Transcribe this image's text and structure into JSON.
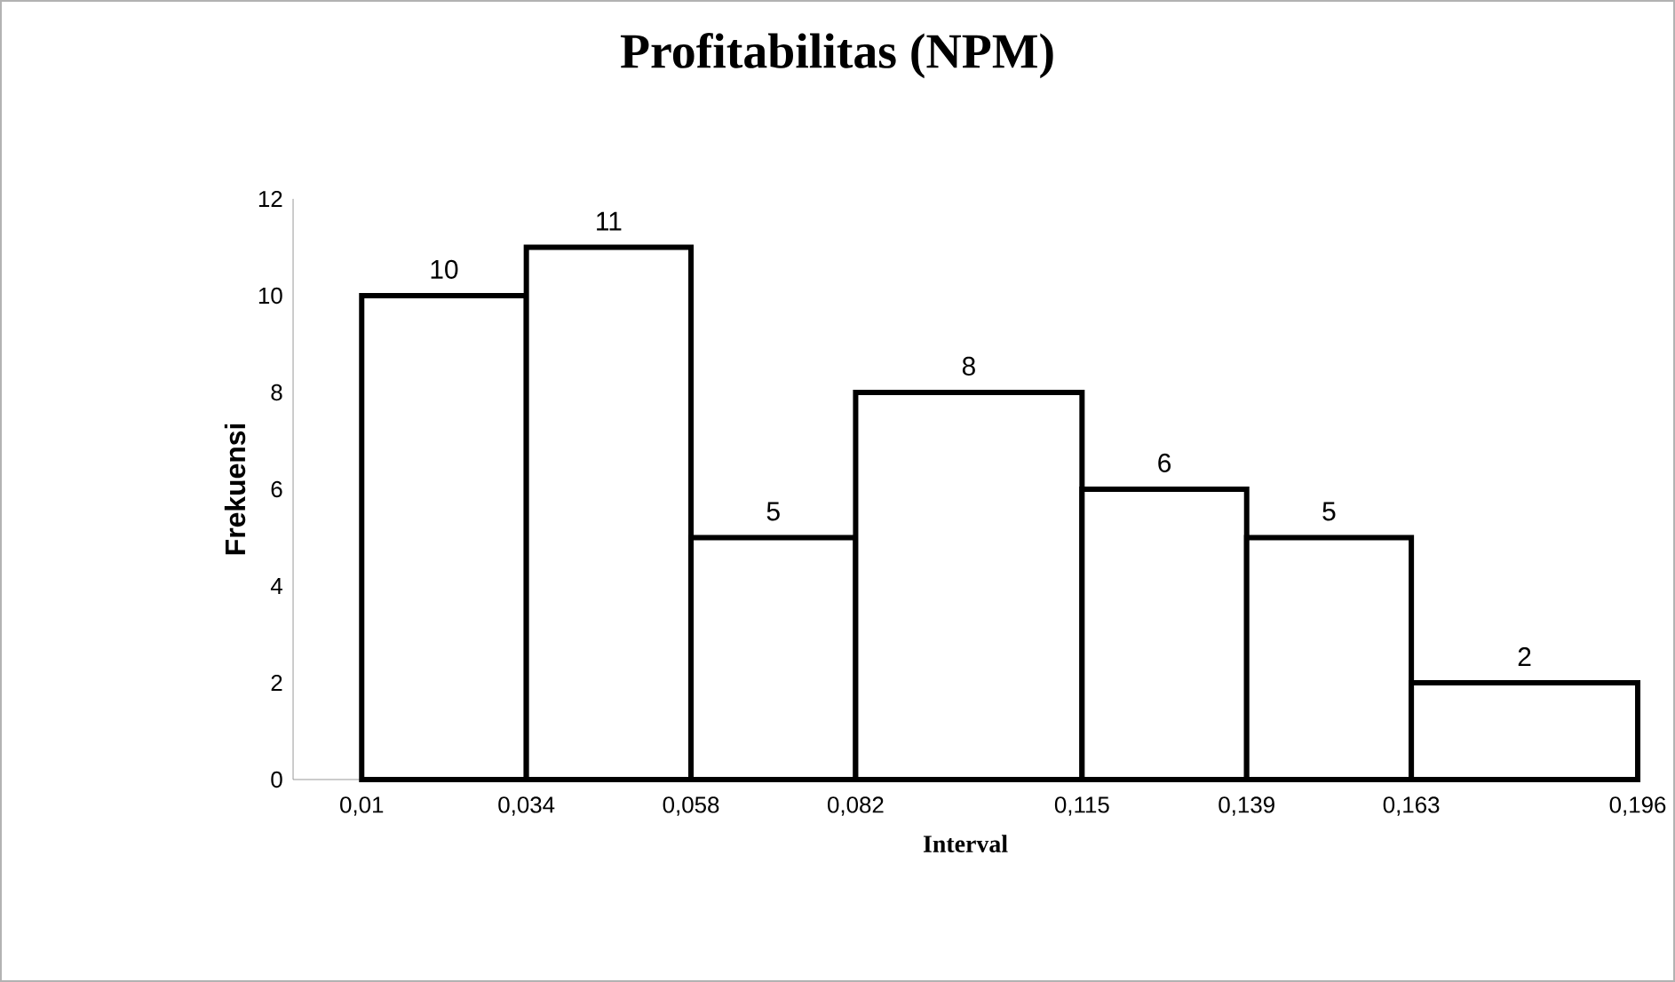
{
  "chart_data": {
    "type": "histogram",
    "title": "Profitabilitas (NPM)",
    "xlabel": "Interval",
    "ylabel": "Frekuensi",
    "bins": [
      0.01,
      0.034,
      0.058,
      0.082,
      0.115,
      0.139,
      0.163,
      0.196
    ],
    "values": [
      10,
      11,
      5,
      8,
      6,
      5,
      2
    ],
    "color": "#ffffff",
    "data_labels": true,
    "xlim": [
      0.0,
      0.196
    ],
    "xticks": [
      {
        "value": 0.01,
        "label": "0,01"
      },
      {
        "value": 0.034,
        "label": "0,034"
      },
      {
        "value": 0.058,
        "label": "0,058"
      },
      {
        "value": 0.082,
        "label": "0,082"
      },
      {
        "value": 0.115,
        "label": "0,115"
      },
      {
        "value": 0.139,
        "label": "0,139"
      },
      {
        "value": 0.163,
        "label": "0,163"
      },
      {
        "value": 0.196,
        "label": "0,196"
      }
    ],
    "ylim": [
      0,
      12
    ],
    "yticks": [
      0,
      2,
      4,
      6,
      8,
      10,
      12
    ],
    "grid": false
  }
}
